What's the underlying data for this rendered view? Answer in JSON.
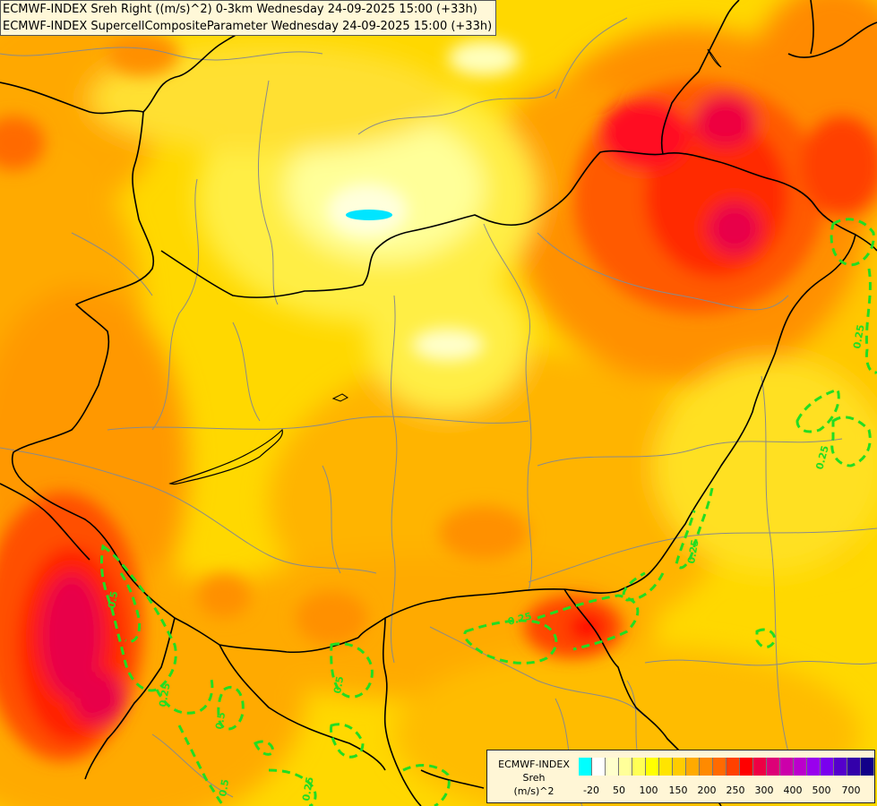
{
  "header": {
    "line1": "ECMWF-INDEX Sreh Right ((m/s)^2) 0-3km Wednesday 24-09-2025 15:00 (+33h)",
    "line2": "ECMWF-INDEX SupercellCompositeParameter Wednesday 24-09-2025 15:00 (+33h)"
  },
  "legend": {
    "line1": "ECMWF-INDEX",
    "line2": "Sreh",
    "line3": "(m/s)^2",
    "colors": [
      "#00ffff",
      "#ffffff",
      "#ffffcc",
      "#ffff99",
      "#ffff55",
      "#ffff00",
      "#ffe400",
      "#ffcc00",
      "#ffaa00",
      "#ff8a00",
      "#ff6a00",
      "#ff4000",
      "#ff0000",
      "#ee0044",
      "#dd0077",
      "#cc00aa",
      "#bb00cc",
      "#9900ee",
      "#7a00ee",
      "#5500cc",
      "#3300aa",
      "#110088"
    ],
    "ticks": [
      "-20",
      "50",
      "100",
      "150",
      "200",
      "250",
      "300",
      "400",
      "500",
      "700"
    ]
  },
  "contour_labels": [
    "0.25",
    "0.25",
    "0.25",
    "0.25",
    "0.5",
    "0.5",
    "0.25",
    "0.5",
    "0.5",
    "0.25"
  ],
  "colors": {
    "background": "#ffd200",
    "border_country": "#000000",
    "border_region": "#8a8a8a",
    "scp_contour": "#22dd22"
  }
}
